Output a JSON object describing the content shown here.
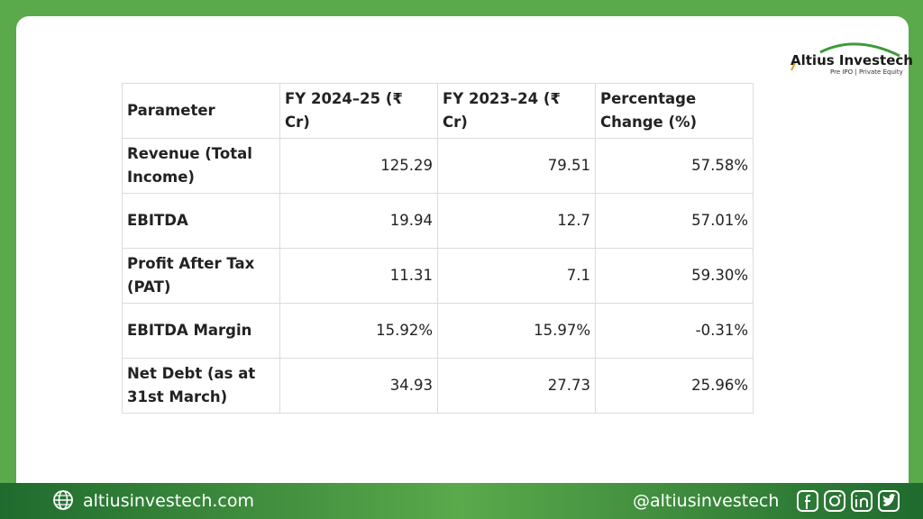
{
  "header": {
    "logo_title": "Altius Investech",
    "logo_subtitle": "Pre IPO | Private Equity"
  },
  "table": {
    "columns": [
      "Parameter",
      "FY 2024–25 (₹ Cr)",
      "FY 2023–24 (₹ Cr)",
      "Percentage Change (%)"
    ],
    "rows": [
      [
        "Revenue (Total Income)",
        "125.29",
        "79.51",
        "57.58%"
      ],
      [
        "EBITDA",
        "19.94",
        "12.7",
        "57.01%"
      ],
      [
        "Profit After Tax (PAT)",
        "11.31",
        "7.1",
        "59.30%"
      ],
      [
        "EBITDA Margin",
        "15.92%",
        "15.97%",
        "-0.31%"
      ],
      [
        "Net Debt (as at 31st March)",
        "34.93",
        "27.73",
        "25.96%"
      ]
    ]
  },
  "footer": {
    "website": "altiusinvestech.com",
    "handle": "@altiusinvestech"
  }
}
